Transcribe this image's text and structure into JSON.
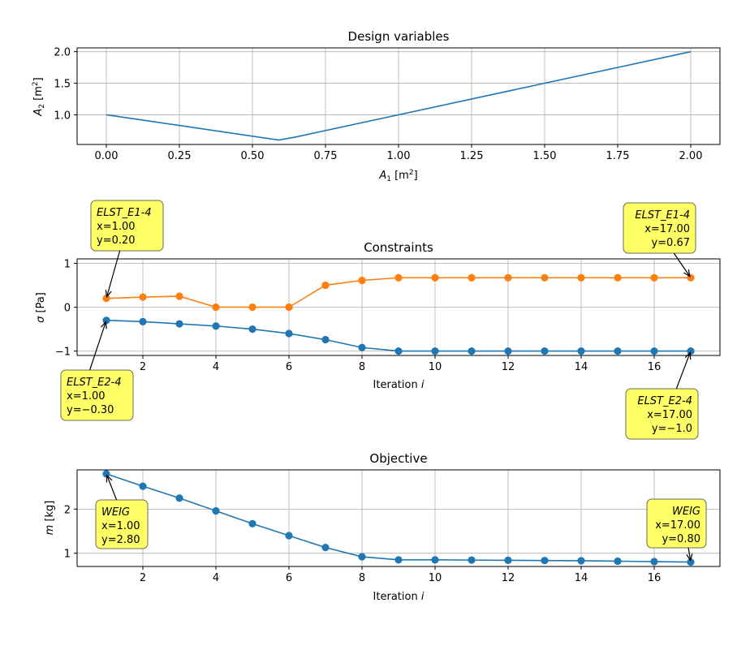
{
  "colors": {
    "blue": "#1f77b4",
    "orange": "#ff7f0e",
    "annotation_fill": "#ffff66",
    "grid": "#b0b0b0"
  },
  "chart_data": [
    {
      "type": "line",
      "title": "Design variables",
      "xlabel": "A_1 [m^2]",
      "ylabel": "A_2 [m^2]",
      "xlim": [
        -0.1,
        2.1
      ],
      "ylim": [
        0.53,
        2.06
      ],
      "xticks": [
        0.0,
        0.25,
        0.5,
        0.75,
        1.0,
        1.25,
        1.5,
        1.75,
        2.0
      ],
      "xtick_labels": [
        "0.00",
        "0.25",
        "0.50",
        "0.75",
        "1.00",
        "1.25",
        "1.50",
        "1.75",
        "2.00"
      ],
      "yticks": [
        1.0,
        1.5,
        2.0
      ],
      "ytick_labels": [
        "1.0",
        "1.5",
        "2.0"
      ],
      "grid": true,
      "series": [
        {
          "color": "blue",
          "markers": false,
          "x": [
            0.0,
            0.59,
            0.65,
            2.0
          ],
          "y": [
            1.0,
            0.6,
            0.65,
            2.0
          ]
        }
      ]
    },
    {
      "type": "line",
      "title": "Constraints",
      "xlabel": "Iteration i",
      "ylabel": "σ [Pa]",
      "xlim": [
        0.2,
        17.8
      ],
      "ylim": [
        -1.1,
        1.1
      ],
      "xticks": [
        2,
        4,
        6,
        8,
        10,
        12,
        14,
        16
      ],
      "xtick_labels": [
        "2",
        "4",
        "6",
        "8",
        "10",
        "12",
        "14",
        "16"
      ],
      "yticks": [
        -1,
        0,
        1
      ],
      "ytick_labels": [
        "−1",
        "0",
        "1"
      ],
      "grid": true,
      "series": [
        {
          "name": "ELST_E1-4",
          "color": "orange",
          "markers": true,
          "x": [
            1,
            2,
            3,
            4,
            5,
            6,
            7,
            8,
            9,
            10,
            11,
            12,
            13,
            14,
            15,
            16,
            17
          ],
          "y": [
            0.2,
            0.23,
            0.25,
            0.0,
            0.0,
            0.0,
            0.5,
            0.61,
            0.67,
            0.67,
            0.67,
            0.67,
            0.67,
            0.67,
            0.67,
            0.67,
            0.67
          ]
        },
        {
          "name": "ELST_E2-4",
          "color": "blue",
          "markers": true,
          "x": [
            1,
            2,
            3,
            4,
            5,
            6,
            7,
            8,
            9,
            10,
            11,
            12,
            13,
            14,
            15,
            16,
            17
          ],
          "y": [
            -0.3,
            -0.33,
            -0.38,
            -0.43,
            -0.5,
            -0.6,
            -0.74,
            -0.92,
            -1.0,
            -1.0,
            -1.0,
            -1.0,
            -1.0,
            -1.0,
            -1.0,
            -1.0,
            -1.0
          ]
        }
      ],
      "annotations": [
        {
          "name_text": "ELST_E1-4",
          "x_text": "x=1.00",
          "y_text": "y=0.20",
          "x": 1,
          "y": 0.2,
          "align": "left"
        },
        {
          "name_text": "ELST_E1-4",
          "x_text": "x=17.00",
          "y_text": "y=0.67",
          "x": 17,
          "y": 0.67,
          "align": "right"
        },
        {
          "name_text": "ELST_E2-4",
          "x_text": "x=1.00",
          "y_text": "y=−0.30",
          "x": 1,
          "y": -0.3,
          "align": "left"
        },
        {
          "name_text": "ELST_E2-4",
          "x_text": "x=17.00",
          "y_text": "y=−1.0",
          "x": 17,
          "y": -1.0,
          "align": "right"
        }
      ]
    },
    {
      "type": "line",
      "title": "Objective",
      "xlabel": "Iteration i",
      "ylabel": "m [kg]",
      "xlim": [
        0.2,
        17.8
      ],
      "ylim": [
        0.7,
        2.89
      ],
      "xticks": [
        2,
        4,
        6,
        8,
        10,
        12,
        14,
        16
      ],
      "xtick_labels": [
        "2",
        "4",
        "6",
        "8",
        "10",
        "12",
        "14",
        "16"
      ],
      "yticks": [
        1,
        2
      ],
      "ytick_labels": [
        "1",
        "2"
      ],
      "grid": true,
      "series": [
        {
          "name": "WEIG",
          "color": "blue",
          "markers": true,
          "x": [
            1,
            2,
            3,
            4,
            5,
            6,
            7,
            8,
            9,
            10,
            11,
            12,
            13,
            14,
            15,
            16,
            17
          ],
          "y": [
            2.8,
            2.52,
            2.25,
            1.96,
            1.67,
            1.4,
            1.13,
            0.92,
            0.85,
            0.85,
            0.845,
            0.84,
            0.835,
            0.83,
            0.82,
            0.81,
            0.8
          ]
        }
      ],
      "annotations": [
        {
          "name_text": "WEIG",
          "x_text": "x=1.00",
          "y_text": "y=2.80",
          "x": 1,
          "y": 2.8,
          "align": "left"
        },
        {
          "name_text": "WEIG",
          "x_text": "x=17.00",
          "y_text": "y=0.80",
          "x": 17,
          "y": 0.8,
          "align": "right"
        }
      ]
    }
  ]
}
